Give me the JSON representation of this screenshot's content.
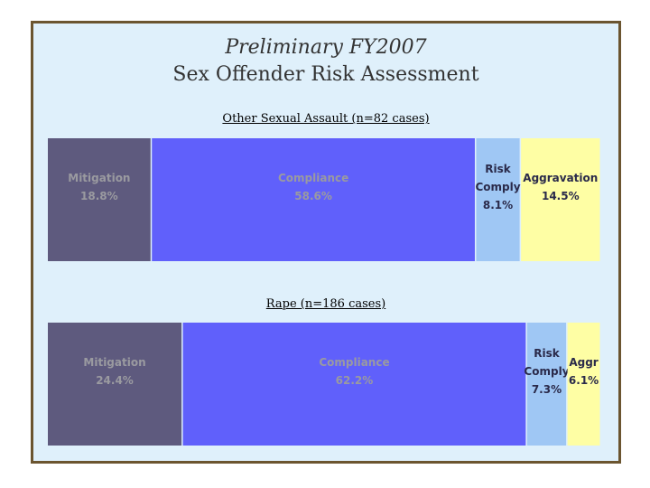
{
  "title": {
    "line1": "Preliminary FY2007",
    "line2": "Sex Offender Risk Assessment"
  },
  "colors": {
    "mitigation": "#5e5a7e",
    "compliance": "#6060fb",
    "risk_comply": "#9fc7f4",
    "aggravation": "#fefea4",
    "label_dark": "#2a2a4a",
    "label_light": "#9a9aa0"
  },
  "chart_data": [
    {
      "type": "bar",
      "title": "Other Sexual Assault (n=82 cases)",
      "stacked": true,
      "orientation": "horizontal",
      "segments": [
        {
          "label": "Mitigation",
          "value": 18.8,
          "value_label": "18.8%"
        },
        {
          "label": "Compliance",
          "value": 58.6,
          "value_label": "58.6%"
        },
        {
          "label": "Risk Comply",
          "value": 8.1,
          "value_label": "8.1%"
        },
        {
          "label": "Aggravation",
          "value": 14.5,
          "value_label": "14.5%"
        }
      ]
    },
    {
      "type": "bar",
      "title": "Rape (n=186 cases)",
      "stacked": true,
      "orientation": "horizontal",
      "segments": [
        {
          "label": "Mitigation",
          "value": 24.4,
          "value_label": "24.4%"
        },
        {
          "label": "Compliance",
          "value": 62.2,
          "value_label": "62.2%"
        },
        {
          "label": "Risk Comply",
          "value": 7.3,
          "value_label": "7.3%"
        },
        {
          "label": "Aggr",
          "value": 6.1,
          "value_label": "6.1%"
        }
      ]
    }
  ]
}
